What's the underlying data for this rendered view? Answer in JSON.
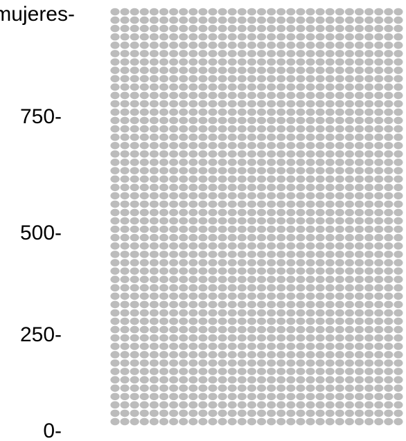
{
  "chart_data": {
    "type": "waffle",
    "axis": {
      "top_label": "mujeres-",
      "tick_labels": [
        "750-",
        "500-",
        "250-",
        "0-"
      ],
      "ticks": [
        750,
        500,
        250,
        0
      ]
    },
    "ylim": [
      0,
      1000
    ],
    "dot_color": "#bcbcbc",
    "visible_columns": 30,
    "rows": 50
  }
}
